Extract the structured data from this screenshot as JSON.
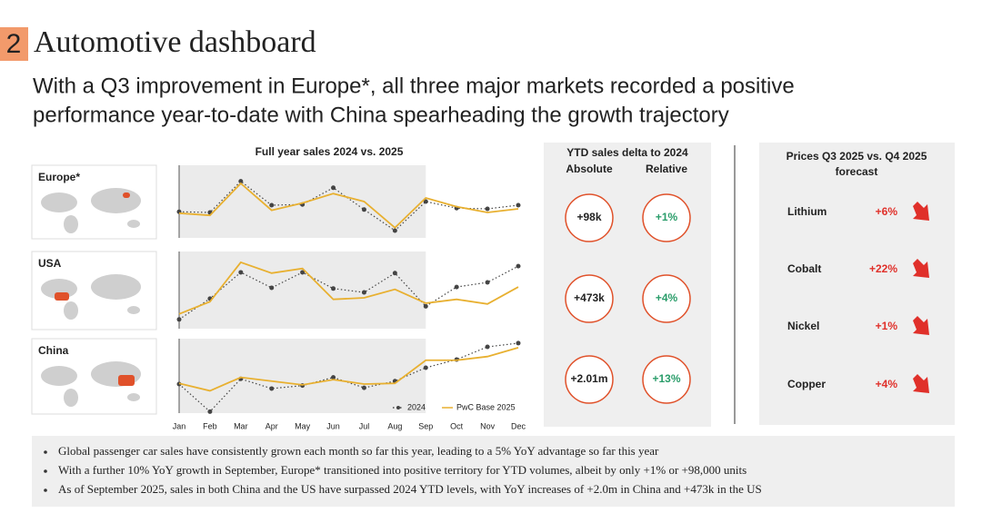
{
  "header": {
    "number": "2",
    "title": "Automotive dashboard",
    "subtitle": [
      "With a Q3 improvement in Europe*, all three major markets recorded a positive",
      "performance year-to-date with China spearheading the growth trajectory"
    ]
  },
  "sales_panel": {
    "title": "Full year sales 2024 vs. 2025"
  },
  "chart_data": [
    {
      "type": "line",
      "label": "Europe*",
      "categories": [
        "Jan",
        "Feb",
        "Mar",
        "Apr",
        "May",
        "Jun",
        "Jul",
        "Aug",
        "Sep",
        "Oct",
        "Nov",
        "Dec"
      ],
      "ylim": [
        0,
        100
      ],
      "series": [
        {
          "name": "2024",
          "color": "#444444",
          "line_style": "dotted",
          "values": [
            36,
            35,
            78,
            45,
            46,
            69,
            39,
            10,
            50,
            41,
            40,
            45
          ]
        },
        {
          "name": "PwC Base 2025",
          "color": "#e8b030",
          "line_style": "solid",
          "values": [
            34,
            31,
            75,
            38,
            48,
            61,
            50,
            14,
            55,
            43,
            35,
            40
          ]
        }
      ]
    },
    {
      "type": "line",
      "label": "USA",
      "categories": [
        "Jan",
        "Feb",
        "Mar",
        "Apr",
        "May",
        "Jun",
        "Jul",
        "Aug",
        "Sep",
        "Oct",
        "Nov",
        "Dec"
      ],
      "ylim": [
        0,
        100
      ],
      "series": [
        {
          "name": "2024",
          "color": "#444444",
          "line_style": "dotted",
          "values": [
            12,
            39,
            73,
            53,
            73,
            52,
            47,
            72,
            29,
            54,
            60,
            81
          ]
        },
        {
          "name": "PwC Base 2025",
          "color": "#e8b030",
          "line_style": "solid",
          "values": [
            19,
            35,
            86,
            72,
            78,
            38,
            40,
            51,
            33,
            38,
            32,
            54
          ]
        }
      ]
    },
    {
      "type": "line",
      "label": "China",
      "categories": [
        "Jan",
        "Feb",
        "Mar",
        "Apr",
        "May",
        "Jun",
        "Jul",
        "Aug",
        "Sep",
        "Oct",
        "Nov",
        "Dec"
      ],
      "ylim": [
        0,
        100
      ],
      "legend": "lower right",
      "series": [
        {
          "name": "2024",
          "color": "#444444",
          "line_style": "dotted",
          "values": [
            39,
            2,
            46,
            33,
            37,
            48,
            34,
            43,
            61,
            72,
            89,
            94
          ]
        },
        {
          "name": "PwC Base 2025",
          "color": "#e8b030",
          "line_style": "solid",
          "values": [
            40,
            30,
            48,
            43,
            38,
            45,
            39,
            40,
            71,
            71,
            76,
            88
          ]
        }
      ]
    }
  ],
  "ytd_panel": {
    "title": "YTD sales delta to 2024",
    "columns": [
      "Absolute",
      "Relative"
    ],
    "rows": [
      [
        "+98k",
        "+1%"
      ],
      [
        "+473k",
        "+4%"
      ],
      [
        "+2.01m",
        "+13%"
      ]
    ]
  },
  "prices_panel": {
    "title": [
      "Prices Q3 2025 vs. Q4 2025",
      "forecast"
    ],
    "rows": [
      {
        "name": "Lithium",
        "change": "+6%"
      },
      {
        "name": "Cobalt",
        "change": "+22%"
      },
      {
        "name": "Nickel",
        "change": "+1%"
      },
      {
        "name": "Copper",
        "change": "+4%"
      }
    ]
  },
  "bullets": [
    "Global passenger car sales have consistently grown each month so far this year, leading to a 5% YoY advantage so far this year",
    "With a further 10% YoY growth in September, Europe* transitioned into positive territory for YTD volumes, albeit by only +1% or +98,000 units",
    "As of September 2025, sales in both China and the US have surpassed 2024 YTD levels, with YoY increases of +2.0m in China and +473k in the US"
  ]
}
